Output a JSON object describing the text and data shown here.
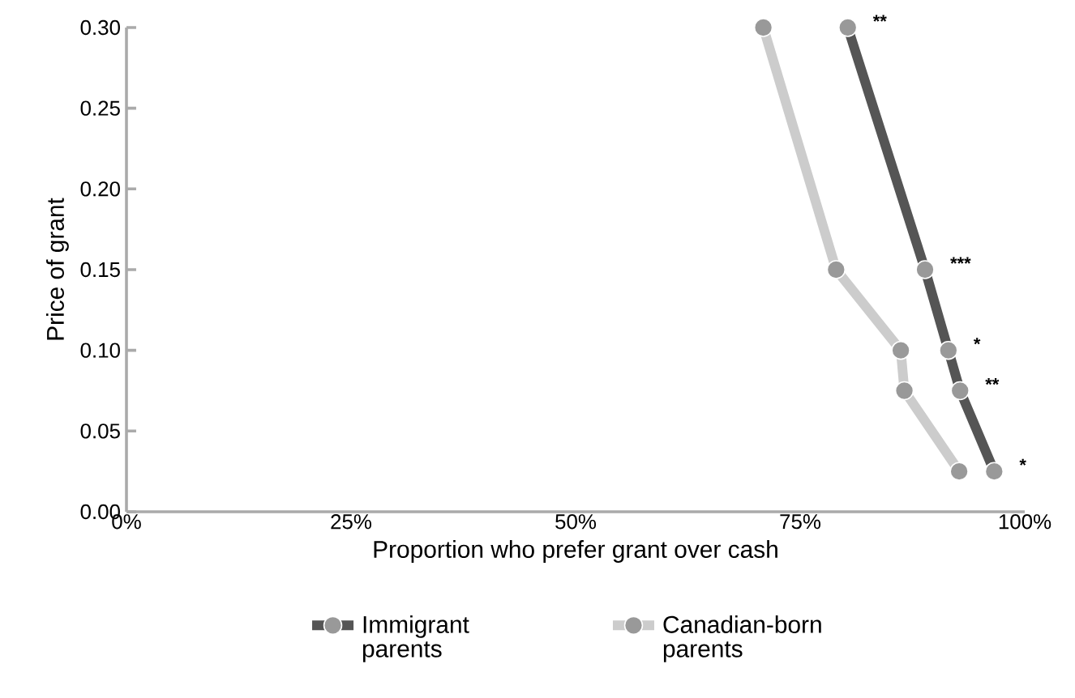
{
  "chart_data": {
    "type": "line",
    "xlabel": "Proportion who prefer grant over cash",
    "ylabel": "Price of grant",
    "xlim": [
      0,
      100
    ],
    "xticks": [
      {
        "value": 0,
        "label": "0%"
      },
      {
        "value": 25,
        "label": "25%"
      },
      {
        "value": 50,
        "label": "50%"
      },
      {
        "value": 75,
        "label": "75%"
      },
      {
        "value": 100,
        "label": "100%"
      }
    ],
    "ylim": [
      0,
      0.3
    ],
    "yticks": [
      {
        "value": 0,
        "label": "0.00"
      },
      {
        "value": 0.05,
        "label": "0.05"
      },
      {
        "value": 0.1,
        "label": "0.10"
      },
      {
        "value": 0.15,
        "label": "0.15"
      },
      {
        "value": 0.2,
        "label": "0.20"
      },
      {
        "value": 0.25,
        "label": "0.25"
      },
      {
        "value": 0.3,
        "label": "0.30"
      }
    ],
    "series": [
      {
        "name": "Immigrant parents",
        "color": "#555555",
        "x": [
          80.3,
          88.9,
          91.5,
          92.8,
          96.6
        ],
        "values": [
          0.3,
          0.15,
          0.1,
          0.075,
          0.025
        ]
      },
      {
        "name": "Canadian-born parents",
        "color": "#cccccc",
        "x": [
          70.9,
          79.0,
          86.2,
          86.6,
          92.7
        ],
        "values": [
          0.3,
          0.15,
          0.1,
          0.075,
          0.025
        ]
      }
    ],
    "annotations": [
      {
        "text": "**",
        "x": 80.3,
        "y": 0.3
      },
      {
        "text": "***",
        "x": 88.9,
        "y": 0.15
      },
      {
        "text": "*",
        "x": 91.5,
        "y": 0.1
      },
      {
        "text": "**",
        "x": 92.8,
        "y": 0.075
      },
      {
        "text": "*",
        "x": 96.6,
        "y": 0.025
      }
    ],
    "marker": "circle",
    "legend": "bottom",
    "grid": false
  }
}
